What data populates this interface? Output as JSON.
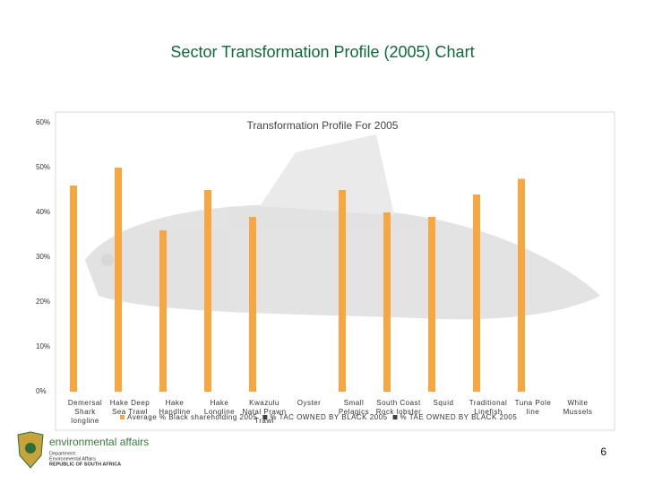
{
  "slide_title": "Sector Transformation Profile (2005) Chart",
  "chart_data": {
    "type": "bar",
    "title": "Transformation Profile For 2005",
    "categories": [
      "Demersal Shark longline",
      "Hake Deep Sea Trawl",
      "Hake Handline",
      "Hake Longline",
      "Kwazulu Natal Prawn Trawl",
      "Oyster",
      "Small Pelagics",
      "South Coast Rock lobster",
      "Squid",
      "Traditional Linefish",
      "Tuna Pole line",
      "White Mussels"
    ],
    "series": [
      {
        "name": "Average % Black shareholding 2005",
        "color": "#f5a742",
        "values": [
          46,
          50,
          36,
          45,
          39,
          null,
          45,
          40,
          39,
          44,
          47.5,
          null
        ]
      },
      {
        "name": "% TAC OWNED BY BLACK 2005",
        "color": "#404040",
        "values": [
          null,
          null,
          null,
          null,
          null,
          null,
          null,
          null,
          null,
          null,
          null,
          null
        ]
      },
      {
        "name": "% TAE OWNED BY BLACK 2005",
        "color": "#404040",
        "values": [
          null,
          null,
          null,
          null,
          null,
          null,
          null,
          null,
          null,
          null,
          null,
          null
        ]
      }
    ],
    "ylim": [
      0,
      60
    ],
    "yticks": [
      {
        "value": 0,
        "label": "0%"
      },
      {
        "value": 10,
        "label": "10%"
      },
      {
        "value": 20,
        "label": "20%"
      },
      {
        "value": 30,
        "label": "30%"
      },
      {
        "value": 40,
        "label": "40%"
      },
      {
        "value": 50,
        "label": "50%"
      },
      {
        "value": 60,
        "label": "60%"
      }
    ],
    "grid": false,
    "legend": "bottom"
  },
  "footer": {
    "logo_text": "environmental affairs",
    "department_label": "Department:",
    "department": "Environmental Affairs",
    "country": "REPUBLIC OF SOUTH AFRICA",
    "page_number": "6"
  }
}
